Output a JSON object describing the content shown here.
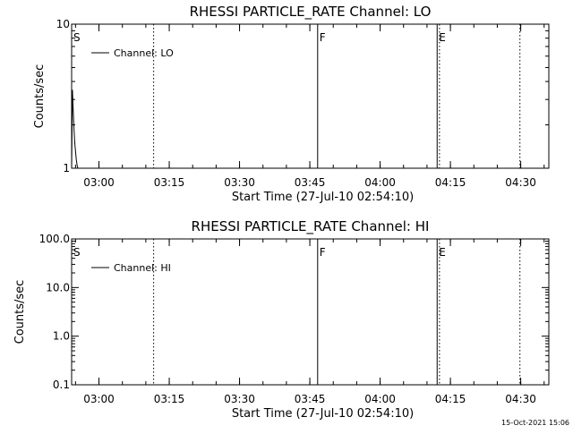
{
  "chart_data": [
    {
      "type": "line",
      "title": "RHESSI PARTICLE_RATE Channel: LO",
      "xlabel": "Start Time (27-Jul-10 02:54:10)",
      "ylabel": "Counts/sec",
      "y_scale": "log",
      "xlim": [
        "02:54:10",
        "04:36:00"
      ],
      "ylim": [
        1,
        10
      ],
      "x_ticks": [
        "03:00",
        "03:15",
        "03:30",
        "03:45",
        "04:00",
        "04:15",
        "04:30"
      ],
      "y_ticks": [
        "1",
        "10"
      ],
      "legend_position": "top-left",
      "series": [
        {
          "name": "Channel: LO",
          "color": "#000000",
          "x": [
            "02:54:10",
            "02:54:20",
            "02:54:30",
            "02:54:40",
            "02:54:50",
            "02:55:00",
            "02:55:10",
            "02:55:20",
            "02:55:30",
            "02:55:40",
            "02:55:50"
          ],
          "y": [
            1,
            3.5,
            2.6,
            1.9,
            1.5,
            1.3,
            1.15,
            1.05,
            1,
            1,
            1
          ]
        }
      ],
      "markers": [
        {
          "label": "S",
          "time": "02:54:10",
          "style": "solid"
        },
        {
          "label": "",
          "time": "03:11:40",
          "style": "dotted"
        },
        {
          "label": "F",
          "time": "03:46:40",
          "style": "solid"
        },
        {
          "label": "E",
          "time": "04:12:10",
          "style": "solid"
        },
        {
          "label": "",
          "time": "04:12:40",
          "style": "dotted"
        },
        {
          "label": "",
          "time": "04:29:50",
          "style": "dotted"
        }
      ]
    },
    {
      "type": "line",
      "title": "RHESSI PARTICLE_RATE Channel: HI",
      "xlabel": "Start Time (27-Jul-10 02:54:10)",
      "ylabel": "Counts/sec",
      "y_scale": "log",
      "xlim": [
        "02:54:10",
        "04:36:00"
      ],
      "ylim": [
        0.1,
        100
      ],
      "x_ticks": [
        "03:00",
        "03:15",
        "03:30",
        "03:45",
        "04:00",
        "04:15",
        "04:30"
      ],
      "y_ticks": [
        "0.1",
        "1.0",
        "10.0",
        "100.0"
      ],
      "legend_position": "top-left",
      "series": [
        {
          "name": "Channel: HI",
          "color": "#000000",
          "x": [],
          "y": []
        }
      ],
      "markers": [
        {
          "label": "S",
          "time": "02:54:10",
          "style": "solid"
        },
        {
          "label": "",
          "time": "03:11:40",
          "style": "dotted"
        },
        {
          "label": "F",
          "time": "03:46:40",
          "style": "solid"
        },
        {
          "label": "E",
          "time": "04:12:10",
          "style": "solid"
        },
        {
          "label": "",
          "time": "04:12:40",
          "style": "dotted"
        },
        {
          "label": "",
          "time": "04:29:50",
          "style": "dotted"
        }
      ]
    }
  ],
  "footer": {
    "timestamp": "15-Oct-2021 15:06"
  }
}
